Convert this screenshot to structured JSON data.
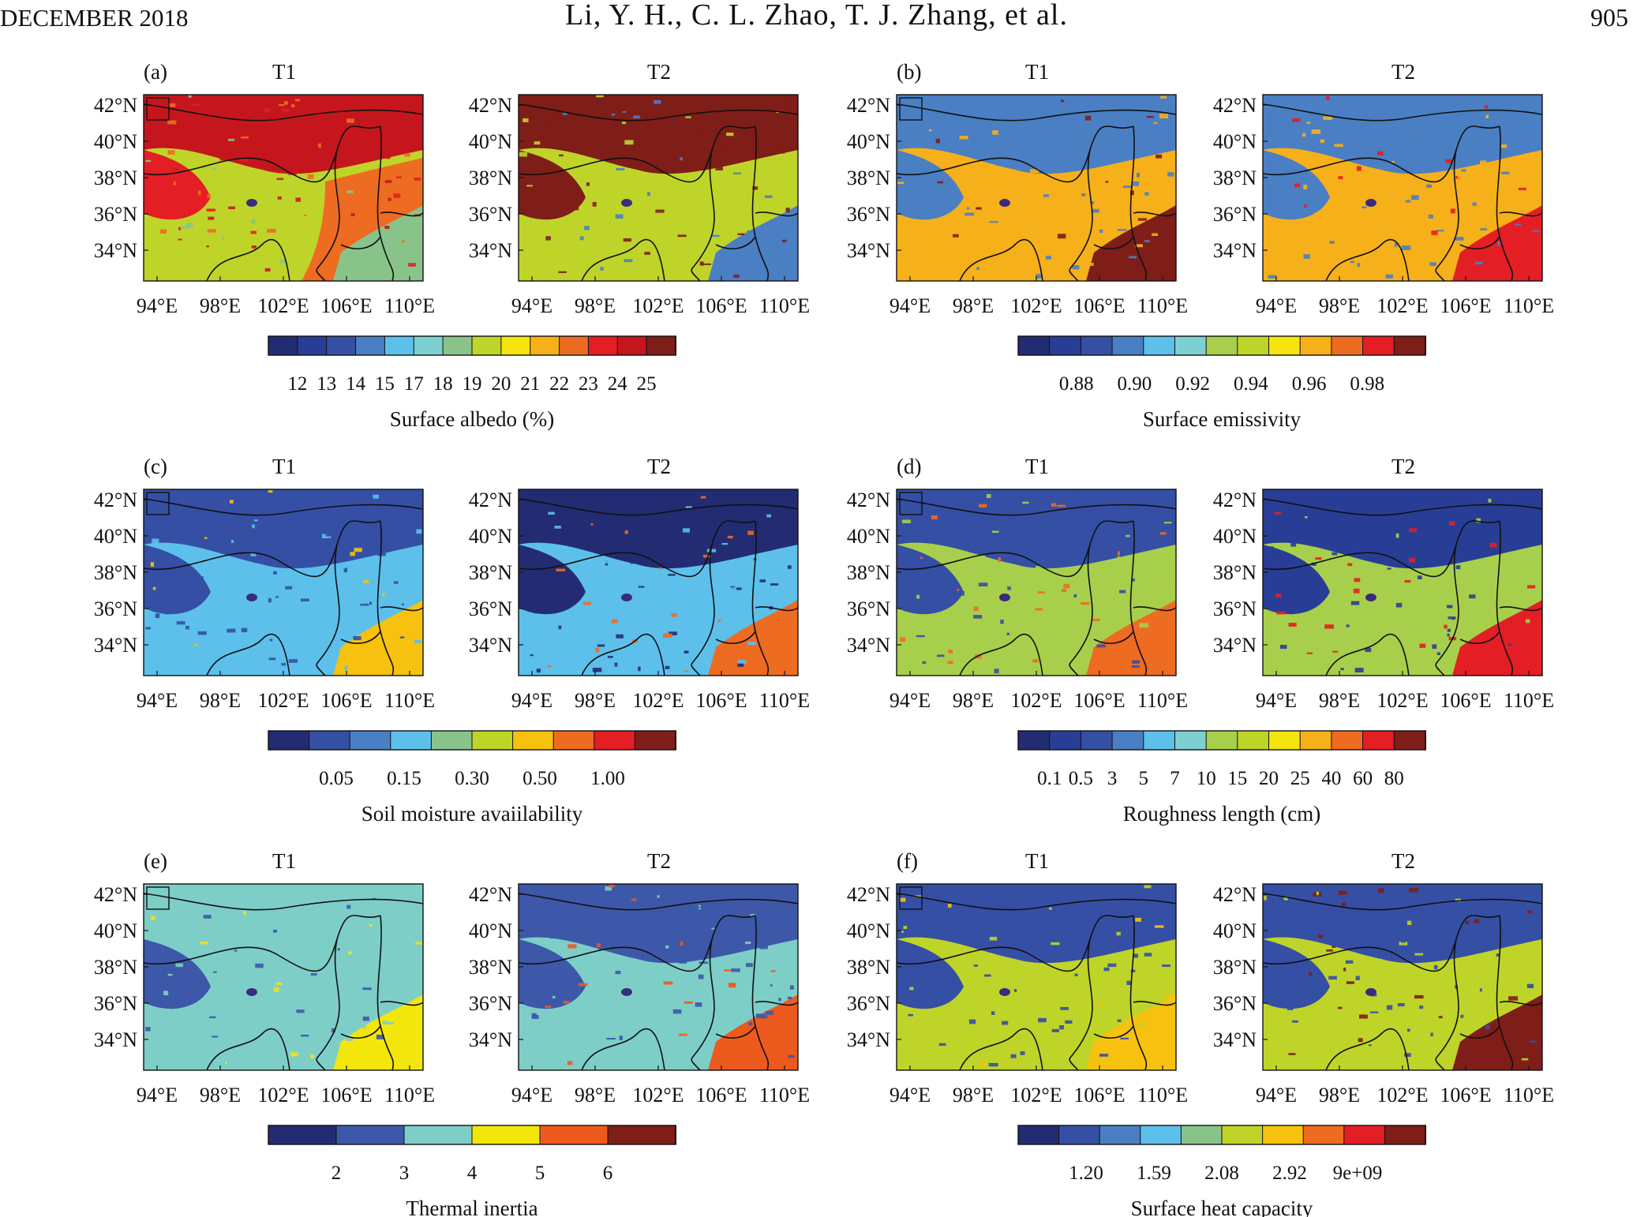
{
  "header": {
    "left": "DECEMBER 2018",
    "center": "Li, Y. H., C. L. Zhao, T. J. Zhang, et al.",
    "page_number": "905"
  },
  "lat_labels": [
    "42°N",
    "40°N",
    "38°N",
    "36°N",
    "34°N"
  ],
  "lon_labels": [
    "94°E",
    "98°E",
    "102°E",
    "106°E",
    "110°E"
  ],
  "panel_titles": [
    "T1",
    "T2"
  ],
  "palettes": {
    "p13": [
      "#232c72",
      "#283e96",
      "#354fa5",
      "#4a7fc3",
      "#5cc0eb",
      "#7ecfd1",
      "#88c48a",
      "#bfd429",
      "#f5e40f",
      "#f6b019",
      "#ee6b22",
      "#e31e24",
      "#c5161d",
      "#7f1d18"
    ],
    "p12": [
      "#232c72",
      "#283e96",
      "#354fa5",
      "#4a7fc3",
      "#5cc0eb",
      "#7ecfd1",
      "#a8cf4b",
      "#bfd429",
      "#f5e40f",
      "#f6b019",
      "#ee6b22",
      "#e31e24",
      "#7f1d18"
    ],
    "p10": [
      "#232c72",
      "#354fa5",
      "#4a7fc3",
      "#5cc0eb",
      "#88c48a",
      "#bfd429",
      "#f6c20f",
      "#ee6b22",
      "#e31e24",
      "#7f1d18"
    ],
    "p9": [
      "#232c72",
      "#354fa5",
      "#4a7fc3",
      "#5cc0eb",
      "#88c48a",
      "#bfd429",
      "#f6c20f",
      "#ee6b22",
      "#e31e24",
      "#7f1d18"
    ],
    "p6": [
      "#232c72",
      "#3d58a8",
      "#7ecec8",
      "#f2e60c",
      "#ed5a1e",
      "#7f1d18"
    ]
  },
  "panels": [
    {
      "label": "(a)",
      "colorbar_title": "Surface albedo (%)",
      "palette": "p13",
      "tick_labels": [
        "12",
        "13",
        "14",
        "15",
        "17",
        "18",
        "19",
        "20",
        "21",
        "22",
        "23",
        "24",
        "25"
      ],
      "dominant_t1": "orange/red with yellow-green south",
      "dominant_t2": "dark red north, yellow-green south, blue southeast",
      "t1_colors": {
        "north": 12,
        "mid": 10,
        "south": 7,
        "west": 11,
        "se": 6
      },
      "t2_colors": {
        "north": 13,
        "mid": 7,
        "south": 7,
        "west": 13,
        "se": 3
      }
    },
    {
      "label": "(b)",
      "colorbar_title": "Surface emissivity",
      "palette": "p12",
      "tick_labels": [
        "0.88",
        "0.90",
        "0.92",
        "0.94",
        "0.96",
        "0.98"
      ],
      "t1_colors": {
        "north": 3,
        "mid": 9,
        "south": 9,
        "west": 3,
        "se": 12
      },
      "t2_colors": {
        "north": 3,
        "mid": 9,
        "south": 9,
        "west": 3,
        "se": 11
      }
    },
    {
      "label": "(c)",
      "colorbar_title": "Soil moisture avaiilability",
      "palette": "p10",
      "tick_labels": [
        "0.05",
        "0.15",
        "0.30",
        "0.50",
        "1.00"
      ],
      "t1_colors": {
        "north": 1,
        "mid": 3,
        "south": 3,
        "west": 1,
        "se": 6
      },
      "t2_colors": {
        "north": 0,
        "mid": 3,
        "south": 3,
        "west": 0,
        "se": 7
      }
    },
    {
      "label": "(d)",
      "colorbar_title": "Roughness length (cm)",
      "palette": "p12",
      "tick_labels": [
        "0.1",
        "0.5",
        "3",
        "5",
        "7",
        "10",
        "15",
        "20",
        "25",
        "40",
        "60",
        "80"
      ],
      "t1_colors": {
        "north": 2,
        "mid": 6,
        "south": 6,
        "west": 2,
        "se": 10
      },
      "t2_colors": {
        "north": 1,
        "mid": 6,
        "south": 6,
        "west": 1,
        "se": 11
      }
    },
    {
      "label": "(e)",
      "colorbar_title": "Thermal inertia",
      "palette": "p6",
      "tick_labels": [
        "2",
        "3",
        "4",
        "5",
        "6"
      ],
      "t1_colors": {
        "north": 2,
        "mid": 2,
        "south": 2,
        "west": 1,
        "se": 3
      },
      "t2_colors": {
        "north": 1,
        "mid": 2,
        "south": 2,
        "west": 1,
        "se": 4
      }
    },
    {
      "label": "(f)",
      "colorbar_title": "Surface heat capacity",
      "palette": "p9",
      "tick_labels": [
        "1.20",
        "1.59",
        "2.08",
        "2.92",
        "9e+09"
      ],
      "t1_colors": {
        "north": 1,
        "mid": 5,
        "south": 5,
        "west": 1,
        "se": 6
      },
      "t2_colors": {
        "north": 1,
        "mid": 5,
        "south": 5,
        "west": 1,
        "se": 9
      }
    }
  ]
}
